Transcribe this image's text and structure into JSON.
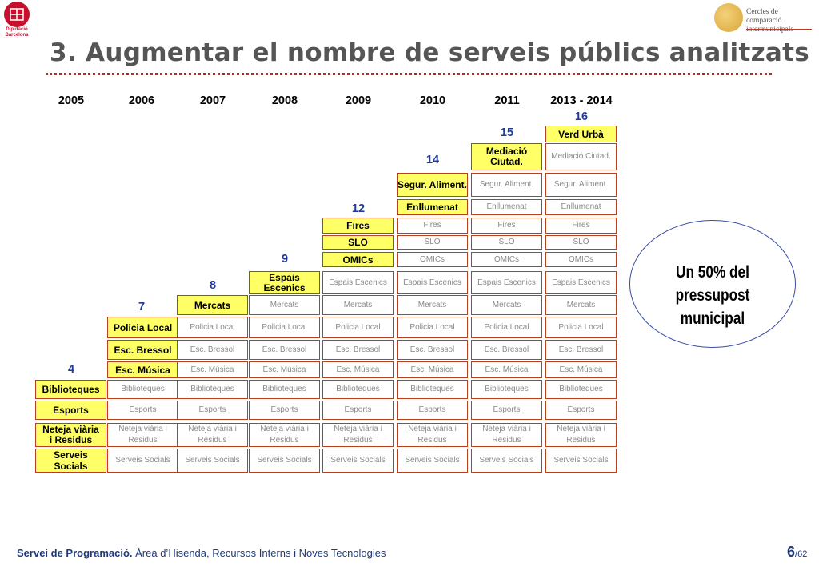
{
  "header": {
    "logo_left_text": "Diputació Barcelona",
    "logo_right_text": [
      "Cercles de comparació",
      "intermunicipals"
    ],
    "title": "3. Augmentar el nombre de serveis públics analitzats"
  },
  "table": {
    "years": [
      "2005",
      "2006",
      "2007",
      "2008",
      "2009",
      "2010",
      "2011",
      "2013 - 2014"
    ],
    "counts": [
      "4",
      "7",
      "8",
      "9",
      "12",
      "14",
      "15",
      "16"
    ],
    "services": [
      {
        "label": "Serveis Socials",
        "short": "Serveis Socials",
        "start_year_index": 0
      },
      {
        "label": "Neteja viària i Residus",
        "short": "Neteja viària i Residus",
        "start_year_index": 0
      },
      {
        "label": "Esports",
        "short": "Esports",
        "start_year_index": 0
      },
      {
        "label": "Biblioteques",
        "short": "Biblioteques",
        "start_year_index": 0
      },
      {
        "label": "Esc. Música",
        "short": "Esc. Música",
        "start_year_index": 1
      },
      {
        "label": "Esc. Bressol",
        "short": "Esc. Bressol",
        "start_year_index": 1
      },
      {
        "label": "Policia Local",
        "short": "Policia Local",
        "start_year_index": 1
      },
      {
        "label": "Mercats",
        "short": "Mercats",
        "start_year_index": 2
      },
      {
        "label": "Espais Escenics",
        "short": "Espais Escenics",
        "start_year_index": 3
      },
      {
        "label": "OMICs",
        "short": "OMICs",
        "start_year_index": 4
      },
      {
        "label": "SLO",
        "short": "SLO",
        "start_year_index": 4
      },
      {
        "label": "Fires",
        "short": "Fires",
        "start_year_index": 4
      },
      {
        "label": "Enllumenat",
        "short": "Enllumenat",
        "start_year_index": 5
      },
      {
        "label": "Segur. Aliment.",
        "short": "Segur. Aliment.",
        "start_year_index": 5
      },
      {
        "label": "Mediació Ciutad.",
        "short": "Mediació Ciutad.",
        "start_year_index": 6
      },
      {
        "label": "Verd Urbà",
        "short": "Verd Urbà",
        "start_year_index": 7
      }
    ]
  },
  "callout": {
    "line1": "Un 50% del",
    "line2": "pressupost municipal"
  },
  "footer": {
    "org": "Servei de Programació.",
    "dept": " Àrea d’Hisenda, Recursos Interns i Noves Tecnologies",
    "page": "6",
    "total": "/62"
  },
  "colors": {
    "new_cell": "#ffff66",
    "border": "#b8401f",
    "count_text": "#1f3a9c",
    "title_rule": "#a9302e"
  }
}
